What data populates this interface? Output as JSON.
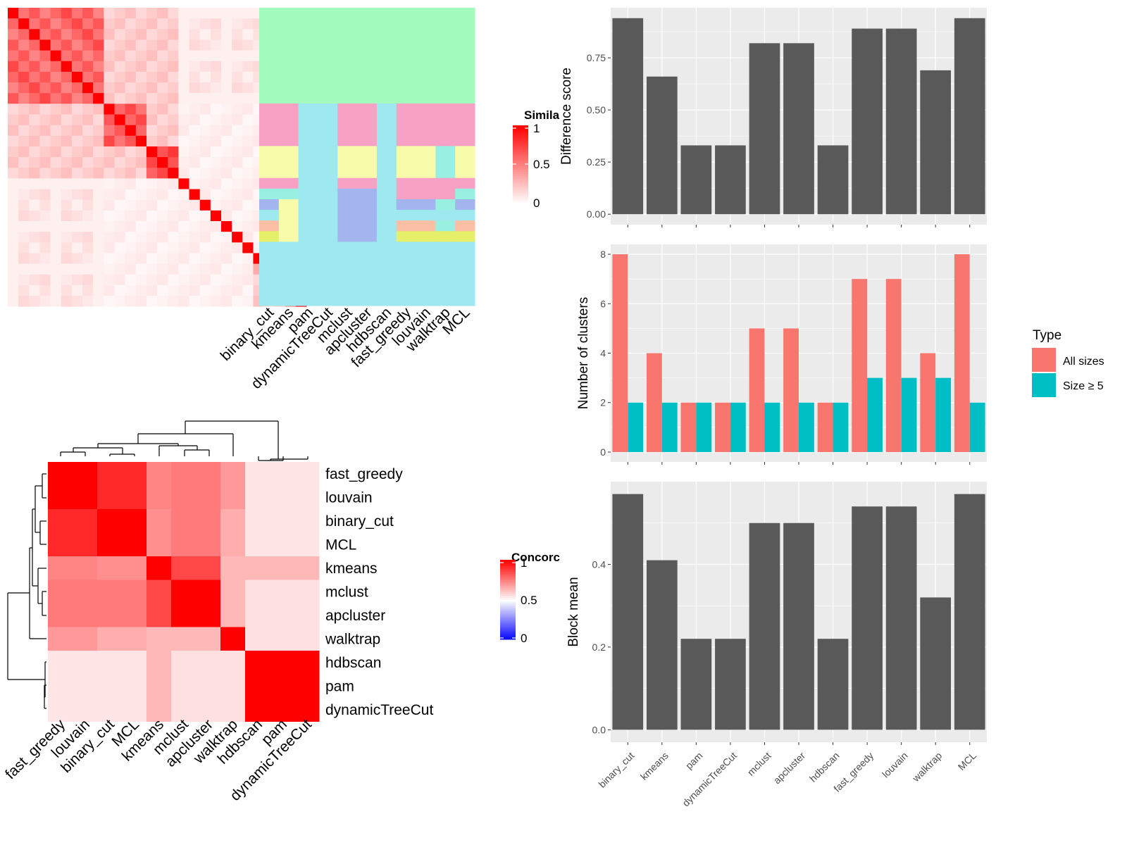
{
  "methods": [
    "binary_cut",
    "kmeans",
    "pam",
    "dynamicTreeCut",
    "mclust",
    "apcluster",
    "hdbscan",
    "fast_greedy",
    "louvain",
    "walktrap",
    "MCL"
  ],
  "colors": {
    "bar_dark": "#595959",
    "panel_bg": "#ebebeb",
    "grid": "#ffffff",
    "all_sizes": "#f8766d",
    "size5": "#00bfc4",
    "heat_high": "#ff0000",
    "heat_low": "#ffffff",
    "heat_neg": "#0000ff"
  },
  "similarity_heatmap": {
    "legend_title": "Simila",
    "legend_ticks": [
      "1",
      "0.5",
      "0"
    ],
    "column_labels": [
      "binary_cut",
      "kmeans",
      "pam",
      "dynamicTreeCut",
      "mclust",
      "apcluster",
      "hdbscan",
      "fast_greedy",
      "louvain",
      "walktrap",
      "MCL"
    ],
    "block_sizes": [
      9,
      4,
      3,
      1,
      1,
      1,
      1,
      1,
      1,
      1,
      2,
      1,
      2
    ],
    "cluster_colors": [
      "#a3fbbd",
      "#f7a1c4",
      "#f7fbaa",
      "#9af0e0",
      "#a2b5ef",
      "#fbbfa5",
      "#e5ef6a",
      "#9de9ef"
    ],
    "assignments": {
      "binary_cut": [
        0,
        1,
        2,
        1,
        3,
        4,
        7,
        5,
        6,
        7,
        7,
        7,
        7
      ],
      "kmeans": [
        0,
        1,
        2,
        1,
        3,
        2,
        2,
        2,
        2,
        7,
        7,
        7,
        7
      ],
      "pam": [
        0,
        7,
        7,
        7,
        7,
        7,
        7,
        7,
        7,
        7,
        7,
        7,
        7
      ],
      "dynamicTreeCut": [
        0,
        7,
        7,
        7,
        7,
        7,
        7,
        7,
        7,
        7,
        7,
        7,
        7
      ],
      "mclust": [
        0,
        1,
        2,
        1,
        4,
        4,
        4,
        4,
        4,
        7,
        7,
        7,
        7
      ],
      "apcluster": [
        0,
        1,
        2,
        1,
        4,
        4,
        4,
        4,
        4,
        7,
        7,
        7,
        7
      ],
      "hdbscan": [
        0,
        7,
        7,
        7,
        7,
        7,
        7,
        7,
        7,
        7,
        7,
        7,
        7
      ],
      "fast_greedy": [
        0,
        1,
        2,
        1,
        1,
        4,
        7,
        5,
        6,
        7,
        7,
        7,
        7
      ],
      "louvain": [
        0,
        1,
        2,
        1,
        1,
        4,
        7,
        5,
        6,
        7,
        7,
        7,
        7
      ],
      "walktrap": [
        0,
        1,
        3,
        1,
        1,
        3,
        7,
        3,
        6,
        7,
        7,
        7,
        7
      ],
      "MCL": [
        0,
        1,
        2,
        1,
        3,
        4,
        7,
        5,
        6,
        7,
        7,
        7,
        7
      ]
    }
  },
  "concordance_heatmap": {
    "legend_title": "Concorc",
    "legend_ticks": [
      "1",
      "0.5",
      "0"
    ],
    "row_labels": [
      "fast_greedy",
      "louvain",
      "binary_cut",
      "MCL",
      "kmeans",
      "mclust",
      "apcluster",
      "walktrap",
      "hdbscan",
      "pam",
      "dynamicTreeCut"
    ],
    "col_labels": [
      "fast_greedy",
      "louvain",
      "binary_cut",
      "MCL",
      "kmeans",
      "mclust",
      "apcluster",
      "walktrap",
      "hdbscan",
      "pam",
      "dynamicTreeCut"
    ],
    "matrix": [
      [
        1.0,
        1.0,
        0.92,
        0.92,
        0.74,
        0.76,
        0.76,
        0.7,
        0.55,
        0.55,
        0.55
      ],
      [
        1.0,
        1.0,
        0.92,
        0.92,
        0.74,
        0.76,
        0.76,
        0.7,
        0.55,
        0.55,
        0.55
      ],
      [
        0.92,
        0.92,
        1.0,
        1.0,
        0.72,
        0.76,
        0.76,
        0.66,
        0.55,
        0.55,
        0.55
      ],
      [
        0.92,
        0.92,
        1.0,
        1.0,
        0.72,
        0.76,
        0.76,
        0.66,
        0.55,
        0.55,
        0.55
      ],
      [
        0.74,
        0.74,
        0.72,
        0.72,
        1.0,
        0.86,
        0.86,
        0.64,
        0.64,
        0.64,
        0.64
      ],
      [
        0.76,
        0.76,
        0.76,
        0.76,
        0.86,
        1.0,
        1.0,
        0.64,
        0.56,
        0.56,
        0.56
      ],
      [
        0.76,
        0.76,
        0.76,
        0.76,
        0.86,
        1.0,
        1.0,
        0.64,
        0.56,
        0.56,
        0.56
      ],
      [
        0.7,
        0.7,
        0.66,
        0.66,
        0.64,
        0.64,
        0.64,
        1.0,
        0.56,
        0.56,
        0.56
      ],
      [
        0.55,
        0.55,
        0.55,
        0.55,
        0.64,
        0.56,
        0.56,
        0.56,
        1.0,
        1.0,
        1.0
      ],
      [
        0.55,
        0.55,
        0.55,
        0.55,
        0.64,
        0.56,
        0.56,
        0.56,
        1.0,
        1.0,
        1.0
      ],
      [
        0.55,
        0.55,
        0.55,
        0.55,
        0.64,
        0.56,
        0.56,
        0.56,
        1.0,
        1.0,
        1.0
      ]
    ]
  },
  "chart_data": [
    {
      "type": "bar",
      "categories": [
        "binary_cut",
        "kmeans",
        "pam",
        "dynamicTreeCut",
        "mclust",
        "apcluster",
        "hdbscan",
        "fast_greedy",
        "louvain",
        "walktrap",
        "MCL"
      ],
      "values": [
        0.94,
        0.66,
        0.33,
        0.33,
        0.82,
        0.82,
        0.33,
        0.89,
        0.89,
        0.69,
        0.94
      ],
      "ylabel": "Difference score",
      "yticks": [
        0.0,
        0.25,
        0.5,
        0.75
      ],
      "ytick_labels": [
        "0.00",
        "0.25",
        "0.50",
        "0.75"
      ],
      "ylim": [
        -0.05,
        0.99
      ]
    },
    {
      "type": "bar",
      "categories": [
        "binary_cut",
        "kmeans",
        "pam",
        "dynamicTreeCut",
        "mclust",
        "apcluster",
        "hdbscan",
        "fast_greedy",
        "louvain",
        "walktrap",
        "MCL"
      ],
      "series": [
        {
          "name": "All sizes",
          "values": [
            8,
            4,
            2,
            2,
            5,
            5,
            2,
            7,
            7,
            4,
            8
          ]
        },
        {
          "name": "Size ≥ 5",
          "values": [
            2,
            2,
            2,
            2,
            2,
            2,
            2,
            3,
            3,
            3,
            2
          ]
        }
      ],
      "ylabel": "Number of clusters",
      "yticks": [
        0,
        2,
        4,
        6,
        8
      ],
      "ytick_labels": [
        "0",
        "2",
        "4",
        "6",
        "8"
      ],
      "ylim": [
        -0.4,
        8.4
      ],
      "legend": {
        "title": "Type",
        "position": "right"
      }
    },
    {
      "type": "bar",
      "categories": [
        "binary_cut",
        "kmeans",
        "pam",
        "dynamicTreeCut",
        "mclust",
        "apcluster",
        "hdbscan",
        "fast_greedy",
        "louvain",
        "walktrap",
        "MCL"
      ],
      "values": [
        0.57,
        0.41,
        0.22,
        0.22,
        0.5,
        0.5,
        0.22,
        0.54,
        0.54,
        0.32,
        0.57
      ],
      "ylabel": "Block mean",
      "yticks": [
        0.0,
        0.2,
        0.4
      ],
      "ytick_labels": [
        "0.0",
        "0.2",
        "0.4"
      ],
      "ylim": [
        -0.03,
        0.6
      ]
    }
  ]
}
